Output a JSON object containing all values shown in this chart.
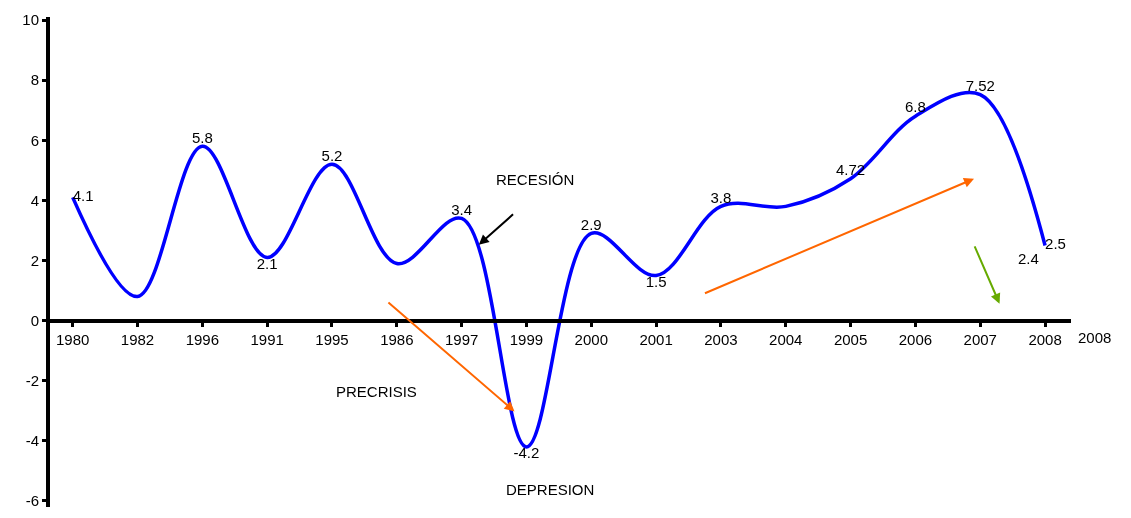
{
  "chart_data": {
    "type": "line",
    "categories": [
      "1980",
      "1982",
      "1996",
      "1991",
      "1995",
      "1986",
      "1997",
      "1999",
      "2000",
      "2001",
      "2003",
      "2004",
      "2005",
      "2006",
      "2007",
      "2008"
    ],
    "series": [
      {
        "color": "#0000ff",
        "values": [
          4.1,
          0.8,
          5.8,
          2.1,
          5.2,
          1.9,
          3.4,
          -4.2,
          2.9,
          1.5,
          3.8,
          3.8,
          4.72,
          6.8,
          7.52,
          2.5
        ],
        "value_labels": [
          "4.1",
          null,
          "5.8",
          "2.1",
          "5.2",
          null,
          "3.4",
          "-4.2",
          "2.9",
          "1.5",
          "3.8",
          null,
          "4.72",
          "6.8",
          "7.52",
          "2.5"
        ]
      }
    ],
    "ylim": [
      -6.2,
      10.1
    ],
    "yticks": [
      -6,
      -4,
      -2,
      0,
      2,
      4,
      6,
      8,
      10
    ],
    "legend": false,
    "marker": "none",
    "line_style": "solid",
    "annotations": [
      "RECESIÓN",
      "PRECRISIS",
      "DEPRESION",
      "2008",
      {
        "text": "2.4",
        "x": "2008",
        "y": 2.4
      }
    ]
  }
}
